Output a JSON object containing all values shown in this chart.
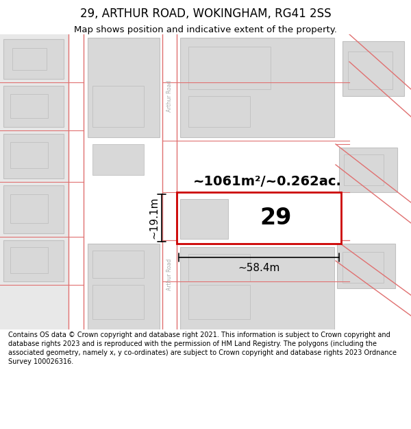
{
  "title": "29, ARTHUR ROAD, WOKINGHAM, RG41 2SS",
  "subtitle": "Map shows position and indicative extent of the property.",
  "footer": "Contains OS data © Crown copyright and database right 2021. This information is subject to Crown copyright and database rights 2023 and is reproduced with the permission of HM Land Registry. The polygons (including the associated geometry, namely x, y co-ordinates) are subject to Crown copyright and database rights 2023 Ordnance Survey 100026316.",
  "area_text": "~1061m²/~0.262ac.",
  "label_29": "29",
  "dim_width": "~58.4m",
  "dim_height": "~19.1m",
  "bg_color": "#ffffff",
  "road_line_color": "#e07070",
  "building_fill": "#d8d8d8",
  "building_edge": "#c0c0c0",
  "highlight_fill": "#ffffff",
  "highlight_edge": "#cc0000",
  "road_label_color": "#aaaaaa",
  "dim_color": "#000000",
  "title_color": "#000000",
  "subtitle_color": "#000000",
  "footer_color": "#000000",
  "left_bg": "#e8e8e8",
  "map_bg": "#ffffff"
}
